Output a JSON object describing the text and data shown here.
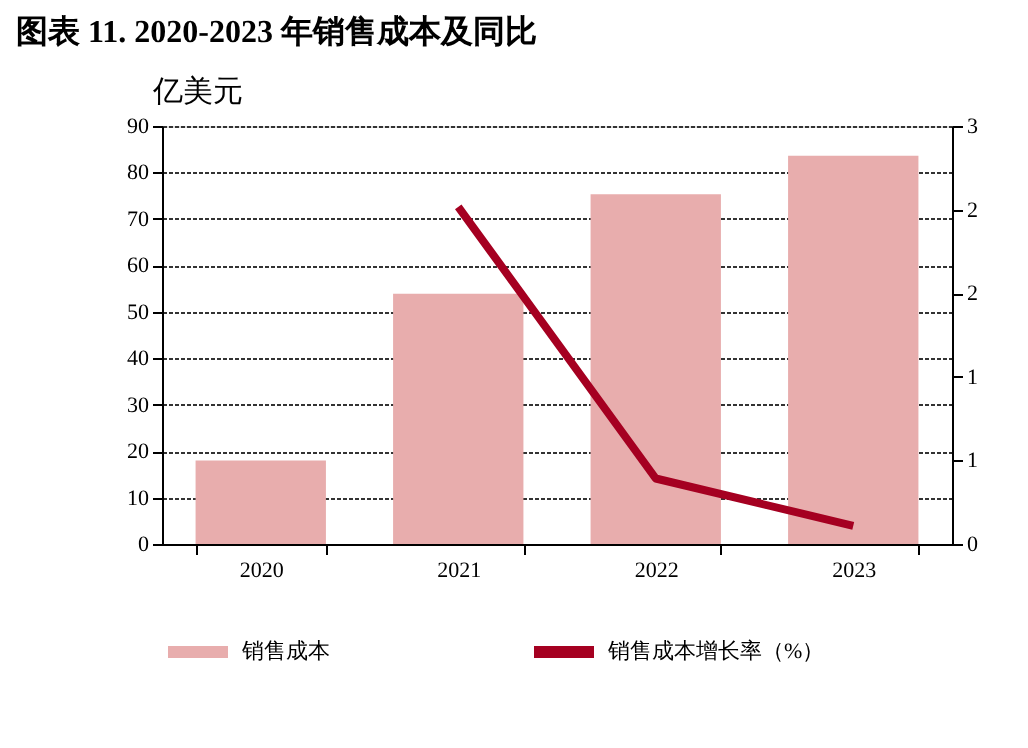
{
  "chart_data": {
    "type": "bar",
    "title": "图表 11. 2020-2023 年销售成本及同比",
    "ylabel": "亿美元",
    "categories": [
      "2020",
      "2021",
      "2022",
      "2023"
    ],
    "series": [
      {
        "name": "销售成本",
        "color": "#e8adad",
        "values": [
          18.0,
          53.9,
          75.3,
          83.6
        ]
      },
      {
        "name": "销售成本增长率（%）",
        "type": "line",
        "axis": "y2",
        "color": "#a50021",
        "values": [
          null,
          2.42,
          0.47,
          0.13
        ]
      }
    ],
    "ylim": [
      0,
      90
    ],
    "yticks": [
      0,
      10,
      20,
      30,
      40,
      50,
      60,
      70,
      80,
      90
    ],
    "y2lim": [
      0,
      3
    ],
    "y2ticks": [
      {
        "value": 0,
        "label": "0"
      },
      {
        "value": 0.6,
        "label": "1"
      },
      {
        "value": 1.2,
        "label": "1"
      },
      {
        "value": 1.8,
        "label": "2"
      },
      {
        "value": 2.4,
        "label": "2"
      },
      {
        "value": 3,
        "label": "3"
      }
    ],
    "grid": "y",
    "legend": "bottom",
    "line_style": "solid",
    "marker": "none"
  }
}
